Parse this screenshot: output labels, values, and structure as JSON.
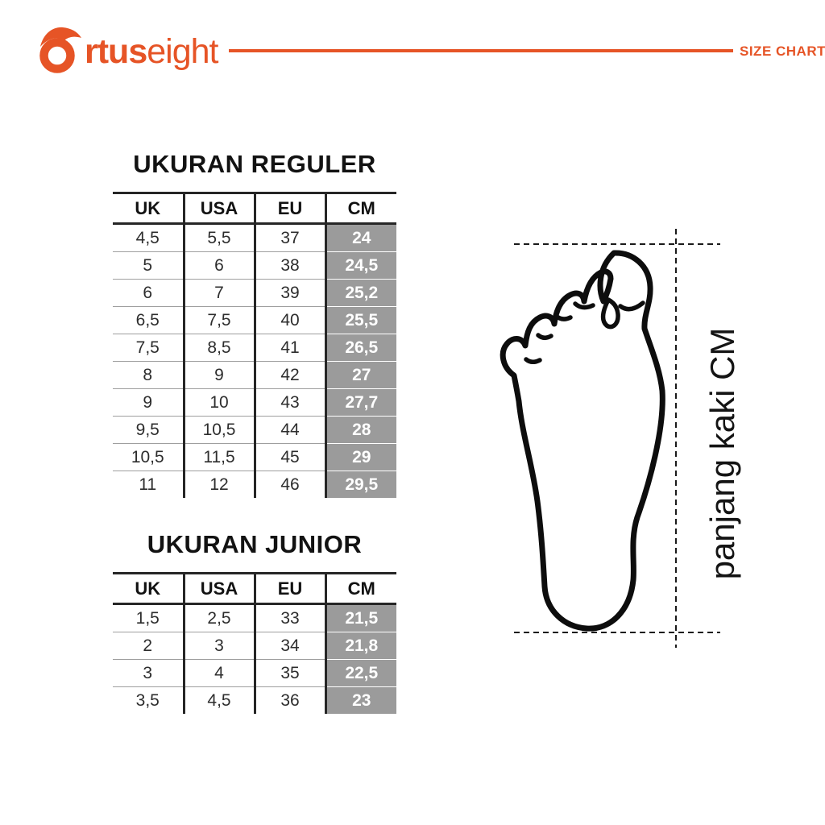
{
  "header": {
    "logo": {
      "o_icon": "flame-o-icon",
      "bold": "rtus",
      "light": "eight"
    },
    "badge": "SIZE CHART"
  },
  "tables": {
    "reguler": {
      "title": "UKURAN REGULER",
      "headers": [
        "UK",
        "USA",
        "EU",
        "CM"
      ],
      "rows": [
        [
          "4,5",
          "5,5",
          "37",
          "24"
        ],
        [
          "5",
          "6",
          "38",
          "24,5"
        ],
        [
          "6",
          "7",
          "39",
          "25,2"
        ],
        [
          "6,5",
          "7,5",
          "40",
          "25,5"
        ],
        [
          "7,5",
          "8,5",
          "41",
          "26,5"
        ],
        [
          "8",
          "9",
          "42",
          "27"
        ],
        [
          "9",
          "10",
          "43",
          "27,7"
        ],
        [
          "9,5",
          "10,5",
          "44",
          "28"
        ],
        [
          "10,5",
          "11,5",
          "45",
          "29"
        ],
        [
          "11",
          "12",
          "46",
          "29,5"
        ]
      ]
    },
    "junior": {
      "title": "UKURAN JUNIOR",
      "headers": [
        "UK",
        "USA",
        "EU",
        "CM"
      ],
      "rows": [
        [
          "1,5",
          "2,5",
          "33",
          "21,5"
        ],
        [
          "2",
          "3",
          "34",
          "21,8"
        ],
        [
          "3",
          "4",
          "35",
          "22,5"
        ],
        [
          "3,5",
          "4,5",
          "36",
          "23"
        ]
      ]
    }
  },
  "diagram": {
    "label": "panjang kaki CM"
  },
  "colors": {
    "accent": "#E65426",
    "cm_cell_bg": "#9B9B9B",
    "cm_cell_text": "#FFFFFF",
    "line_color": "#1A1A1A"
  }
}
